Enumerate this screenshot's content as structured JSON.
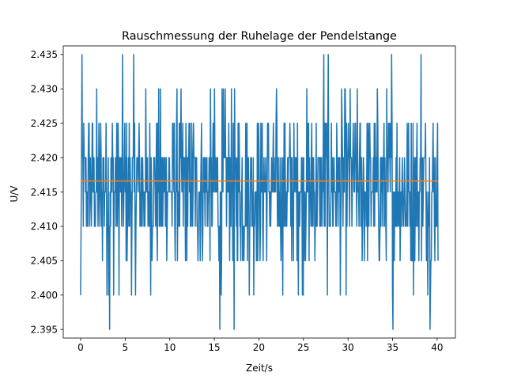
{
  "chart_data": {
    "type": "line",
    "title": "Rauschmessung der Ruhelage der Pendelstange",
    "xlabel": "Zeit/s",
    "ylabel": "U/V",
    "xlim": [
      -1.95,
      42.05
    ],
    "ylim": [
      2.39375,
      2.43625
    ],
    "xticks": [
      0,
      5,
      10,
      15,
      20,
      25,
      30,
      35,
      40
    ],
    "yticks": [
      2.395,
      2.4,
      2.405,
      2.41,
      2.415,
      2.42,
      2.425,
      2.43,
      2.435
    ],
    "xtick_labels": [
      "0",
      "5",
      "10",
      "15",
      "20",
      "25",
      "30",
      "35",
      "40"
    ],
    "ytick_labels": [
      "2.395",
      "2.400",
      "2.405",
      "2.410",
      "2.415",
      "2.420",
      "2.425",
      "2.430",
      "2.435"
    ],
    "grid": false,
    "legend": "none",
    "series": [
      {
        "color": "#1f77b4",
        "x_start": 0.0,
        "x_end": 40.1,
        "sample_count": 802,
        "value_levels": [
          2.395,
          2.4,
          2.405,
          2.41,
          2.415,
          2.42,
          2.425,
          2.43,
          2.435
        ],
        "approx_level_probabilities": [
          0.003,
          0.02,
          0.08,
          0.22,
          0.27,
          0.25,
          0.12,
          0.03,
          0.007
        ],
        "notable_points": [
          {
            "x": 0.0,
            "y": 2.4
          },
          {
            "x": 3.25,
            "y": 2.395
          },
          {
            "x": 15.6,
            "y": 2.395
          },
          {
            "x": 17.2,
            "y": 2.395
          },
          {
            "x": 27.3,
            "y": 2.435
          },
          {
            "x": 34.9,
            "y": 2.435
          },
          {
            "x": 38.2,
            "y": 2.435
          },
          {
            "x": 40.1,
            "y": 2.405
          }
        ]
      },
      {
        "color": "#ff7f0e",
        "x": [
          0.0,
          40.1
        ],
        "y": [
          2.4166,
          2.4166
        ]
      }
    ]
  }
}
